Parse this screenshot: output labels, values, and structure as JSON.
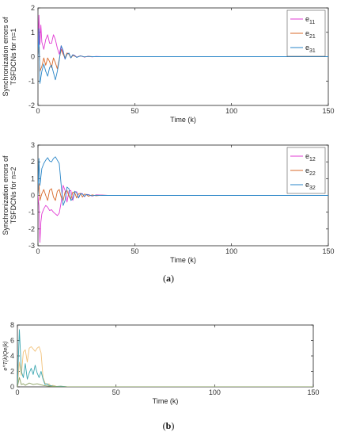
{
  "captions": {
    "a": "a",
    "b": "b"
  },
  "chart_data": [
    {
      "type": "line",
      "title": "",
      "xlabel": "Time (k)",
      "ylabel_lines": [
        "Synchronization errors of",
        "TSFDCNs for n=1"
      ],
      "xlim": [
        0,
        150
      ],
      "ylim": [
        -2,
        2
      ],
      "xticks": [
        0,
        50,
        100,
        150
      ],
      "yticks": [
        -2,
        -1,
        0,
        1,
        2
      ],
      "grid": false,
      "legend_position": "top-right",
      "series": [
        {
          "name": "e11",
          "name_main": "e",
          "name_sub": "11",
          "color": "#e13bd3",
          "x": [
            0,
            0.5,
            1,
            1.5,
            2,
            3,
            4,
            5,
            6,
            7,
            8,
            9,
            10,
            11,
            12,
            13,
            14,
            15,
            16,
            17,
            18,
            19,
            20,
            22,
            24,
            26,
            28,
            30,
            33,
            36,
            40,
            45,
            50,
            60,
            80,
            100,
            120,
            150
          ],
          "y": [
            0,
            1.7,
            0.5,
            1.3,
            0.6,
            0.3,
            0.7,
            0.9,
            0.55,
            0.55,
            0.9,
            0.7,
            0.35,
            0.1,
            0.45,
            0.15,
            -0.1,
            0.15,
            0.12,
            -0.05,
            0.08,
            0.05,
            -0.02,
            0.04,
            -0.02,
            0.02,
            -0.01,
            0.01,
            0,
            0,
            0,
            0,
            0,
            0,
            0,
            0,
            0,
            0
          ]
        },
        {
          "name": "e21",
          "name_main": "e",
          "name_sub": "21",
          "color": "#d8692a",
          "x": [
            0,
            0.5,
            1,
            2,
            3,
            4,
            5,
            6,
            7,
            8,
            9,
            10,
            11,
            12,
            13,
            14,
            15,
            16,
            17,
            18,
            19,
            20,
            22,
            24,
            26,
            28,
            30,
            35,
            40,
            50,
            80,
            100,
            150
          ],
          "y": [
            0,
            0.4,
            -0.6,
            -0.4,
            -0.05,
            -0.35,
            -0.05,
            -0.2,
            -0.45,
            -0.05,
            -0.25,
            -0.5,
            -0.1,
            0.3,
            0.1,
            -0.05,
            0.15,
            0.1,
            -0.05,
            0.05,
            0.02,
            -0.02,
            0.03,
            -0.01,
            0.01,
            0,
            0,
            0,
            0,
            0,
            0,
            0,
            0
          ]
        },
        {
          "name": "e31",
          "name_main": "e",
          "name_sub": "31",
          "color": "#2a86c8",
          "x": [
            0,
            0.5,
            1,
            2,
            3,
            4,
            5,
            6,
            7,
            8,
            9,
            10,
            11,
            12,
            13,
            14,
            15,
            16,
            17,
            18,
            19,
            20,
            22,
            24,
            26,
            28,
            30,
            35,
            40,
            50,
            80,
            100,
            150
          ],
          "y": [
            0,
            1.15,
            -1.1,
            -0.6,
            -0.3,
            -0.6,
            -0.8,
            -0.45,
            -0.35,
            -0.65,
            -0.95,
            -0.6,
            -0.15,
            0.45,
            0.25,
            -0.1,
            0.1,
            0.15,
            -0.05,
            0.08,
            0.04,
            -0.03,
            0.03,
            -0.01,
            0.01,
            0,
            0,
            0,
            0,
            0,
            0,
            0,
            0
          ]
        }
      ]
    },
    {
      "type": "line",
      "title": "",
      "xlabel": "Time (k)",
      "ylabel_lines": [
        "Synchronization errors of",
        "TSFDCNs for n=2"
      ],
      "xlim": [
        0,
        150
      ],
      "ylim": [
        -3,
        3
      ],
      "xticks": [
        0,
        50,
        100,
        150
      ],
      "yticks": [
        -3,
        -2,
        -1,
        0,
        1,
        2,
        3
      ],
      "grid": false,
      "legend_position": "top-right",
      "series": [
        {
          "name": "e12",
          "name_main": "e",
          "name_sub": "12",
          "color": "#e13bd3",
          "x": [
            0,
            0.5,
            1,
            1.5,
            2,
            3,
            4,
            5,
            6,
            7,
            8,
            9,
            10,
            11,
            12,
            13,
            14,
            15,
            16,
            17,
            18,
            19,
            20,
            21,
            22,
            23,
            24,
            25,
            26,
            28,
            30,
            33,
            36,
            40,
            50,
            80,
            100,
            150
          ],
          "y": [
            0,
            -0.6,
            -2.8,
            -1.6,
            -1.1,
            -0.8,
            -0.6,
            -0.7,
            -0.9,
            -0.85,
            -1.0,
            -1.1,
            -1.2,
            -1.05,
            -0.4,
            0.6,
            0.3,
            -0.4,
            0.25,
            0.3,
            -0.3,
            0.2,
            0.22,
            -0.15,
            0.12,
            0.1,
            -0.08,
            0.06,
            0.05,
            -0.04,
            0.03,
            0.02,
            0,
            0,
            0,
            0,
            0,
            0
          ]
        },
        {
          "name": "e22",
          "name_main": "e",
          "name_sub": "22",
          "color": "#d8692a",
          "x": [
            0,
            0.5,
            1,
            2,
            3,
            4,
            5,
            6,
            7,
            8,
            9,
            10,
            11,
            12,
            13,
            14,
            15,
            16,
            17,
            18,
            19,
            20,
            21,
            22,
            23,
            24,
            25,
            26,
            28,
            30,
            33,
            36,
            40,
            50,
            80,
            100,
            150
          ],
          "y": [
            0,
            0.7,
            -0.3,
            0.1,
            0.35,
            0.0,
            -0.3,
            0.3,
            0.4,
            -0.1,
            -0.3,
            0.25,
            0.35,
            -0.1,
            -0.3,
            0.2,
            0.3,
            -0.05,
            -0.25,
            0.2,
            0.15,
            -0.15,
            0.1,
            0.12,
            -0.1,
            0.08,
            0.05,
            -0.05,
            0.03,
            -0.02,
            0.01,
            0,
            0,
            0,
            0,
            0,
            0
          ]
        },
        {
          "name": "e32",
          "name_main": "e",
          "name_sub": "32",
          "color": "#2a86c8",
          "x": [
            0,
            0.5,
            1,
            2,
            3,
            4,
            5,
            6,
            7,
            8,
            9,
            10,
            11,
            12,
            13,
            14,
            15,
            16,
            17,
            18,
            19,
            20,
            21,
            22,
            23,
            24,
            25,
            26,
            28,
            30,
            33,
            36,
            40,
            50,
            80,
            100,
            150
          ],
          "y": [
            0,
            2.2,
            0.6,
            1.6,
            1.9,
            2.1,
            2.25,
            2.05,
            2.0,
            2.2,
            2.3,
            2.1,
            1.9,
            0.6,
            -0.6,
            -0.3,
            0.5,
            0.4,
            -0.3,
            -0.2,
            0.25,
            0.15,
            -0.15,
            0.1,
            0.08,
            -0.06,
            0.05,
            0.03,
            -0.02,
            0.01,
            0,
            0,
            0,
            0,
            0,
            0,
            0
          ]
        }
      ]
    },
    {
      "type": "line",
      "title": "",
      "xlabel": "Time (k)",
      "ylabel": "e^T(k)Qe(k)",
      "xlim": [
        0,
        150
      ],
      "ylim": [
        0,
        8
      ],
      "xticks": [
        0,
        50,
        100,
        150
      ],
      "yticks": [
        0,
        2,
        4,
        6,
        8
      ],
      "grid": false,
      "series": [
        {
          "color": "#f2c27a",
          "x": [
            0,
            1,
            2,
            3,
            4,
            5,
            6,
            7,
            8,
            9,
            10,
            11,
            12,
            13,
            14,
            15,
            16,
            17,
            18,
            20,
            22,
            25,
            30,
            40,
            60,
            100,
            150
          ],
          "y": [
            0,
            3.2,
            1.5,
            4.5,
            4.8,
            3.2,
            5.0,
            5.2,
            4.9,
            4.6,
            5.0,
            5.2,
            4.4,
            1.2,
            0.5,
            0.3,
            0.4,
            0.1,
            0.2,
            0.05,
            0.08,
            0.02,
            0,
            0,
            0,
            0,
            0
          ]
        },
        {
          "color": "#3aa6b0",
          "x": [
            0,
            1,
            2,
            3,
            4,
            5,
            6,
            7,
            8,
            9,
            10,
            11,
            12,
            13,
            14,
            15,
            16,
            18,
            20,
            22,
            25,
            30,
            40,
            60,
            100,
            150
          ],
          "y": [
            0,
            7.4,
            2.0,
            1.2,
            3.0,
            1.0,
            1.8,
            2.4,
            1.6,
            2.8,
            1.8,
            1.2,
            2.0,
            1.0,
            0.3,
            0.4,
            0.2,
            0.1,
            0.05,
            0.08,
            0.02,
            0,
            0,
            0,
            0,
            0
          ]
        },
        {
          "color": "#8aa060",
          "x": [
            0,
            1,
            2,
            3,
            4,
            5,
            6,
            8,
            10,
            12,
            14,
            16,
            18,
            20,
            24,
            30,
            40,
            60,
            100,
            150
          ],
          "y": [
            0,
            1.2,
            0.3,
            0.4,
            0.2,
            0.35,
            0.5,
            0.3,
            0.4,
            0.25,
            0.15,
            0.1,
            0.05,
            0.03,
            0.01,
            0,
            0,
            0,
            0,
            0
          ]
        }
      ]
    }
  ]
}
